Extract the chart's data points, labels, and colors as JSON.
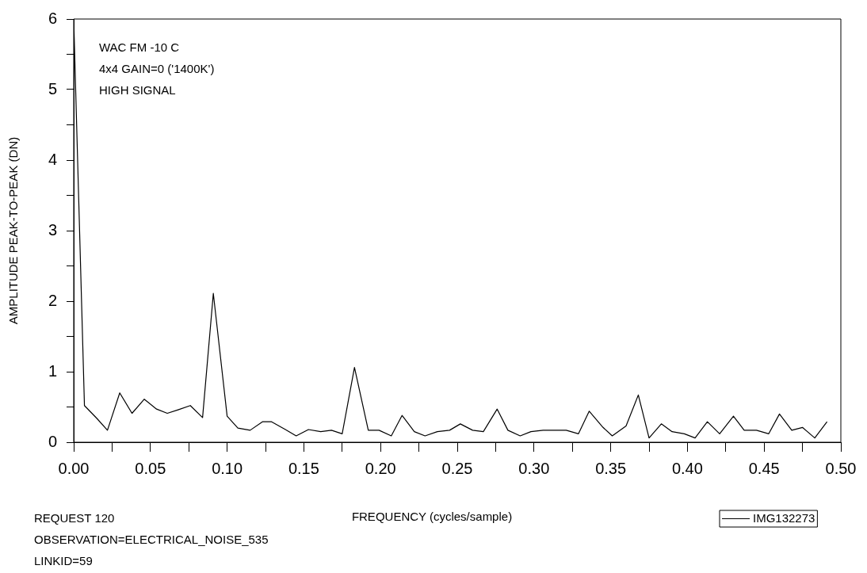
{
  "chart_data": {
    "type": "line",
    "xlabel": "FREQUENCY (cycles/sample)",
    "ylabel": "AMPLITUDE PEAK-TO-PEAK (DN)",
    "annotations": [
      "WAC FM -10 C\n4x4 GAIN=0 ('1400K')\nHIGH SIGNAL",
      "REQUEST 120\nOBSERVATION=ELECTRICAL_NOISE_535\nLINKID=59"
    ],
    "series": [
      {
        "name": "IMG132273",
        "color": "#000000",
        "x": [
          0.0,
          0.007,
          0.015,
          0.022,
          0.03,
          0.038,
          0.046,
          0.054,
          0.061,
          0.068,
          0.076,
          0.084,
          0.091,
          0.1,
          0.107,
          0.115,
          0.123,
          0.129,
          0.138,
          0.145,
          0.153,
          0.161,
          0.168,
          0.175,
          0.183,
          0.192,
          0.199,
          0.207,
          0.214,
          0.222,
          0.229,
          0.237,
          0.245,
          0.252,
          0.26,
          0.267,
          0.276,
          0.283,
          0.291,
          0.298,
          0.306,
          0.314,
          0.321,
          0.329,
          0.336,
          0.345,
          0.351,
          0.36,
          0.368,
          0.375,
          0.383,
          0.39,
          0.398,
          0.405,
          0.413,
          0.421,
          0.43,
          0.437,
          0.445,
          0.453,
          0.46,
          0.468,
          0.475,
          0.483,
          0.491
        ],
        "values": [
          6.0,
          0.52,
          0.34,
          0.17,
          0.7,
          0.41,
          0.61,
          0.47,
          0.41,
          0.46,
          0.52,
          0.35,
          2.11,
          0.37,
          0.2,
          0.17,
          0.29,
          0.29,
          0.18,
          0.09,
          0.18,
          0.15,
          0.17,
          0.12,
          1.06,
          0.17,
          0.17,
          0.09,
          0.38,
          0.15,
          0.09,
          0.15,
          0.17,
          0.26,
          0.17,
          0.15,
          0.47,
          0.17,
          0.09,
          0.15,
          0.17,
          0.17,
          0.17,
          0.12,
          0.44,
          0.21,
          0.09,
          0.23,
          0.67,
          0.06,
          0.26,
          0.15,
          0.12,
          0.06,
          0.29,
          0.12,
          0.37,
          0.17,
          0.17,
          0.12,
          0.4,
          0.17,
          0.21,
          0.06,
          0.29
        ]
      }
    ],
    "xlim": [
      0,
      0.5
    ],
    "xticks": [
      {
        "value": 0,
        "label": "0.00"
      },
      {
        "value": 0.025,
        "label": null
      },
      {
        "value": 0.05,
        "label": "0.05"
      },
      {
        "value": 0.075,
        "label": null
      },
      {
        "value": 0.1,
        "label": "0.10"
      },
      {
        "value": 0.125,
        "label": null
      },
      {
        "value": 0.15,
        "label": "0.15"
      },
      {
        "value": 0.175,
        "label": null
      },
      {
        "value": 0.2,
        "label": "0.20"
      },
      {
        "value": 0.225,
        "label": null
      },
      {
        "value": 0.25,
        "label": "0.25"
      },
      {
        "value": 0.275,
        "label": null
      },
      {
        "value": 0.3,
        "label": "0.30"
      },
      {
        "value": 0.325,
        "label": null
      },
      {
        "value": 0.35,
        "label": "0.35"
      },
      {
        "value": 0.375,
        "label": null
      },
      {
        "value": 0.4,
        "label": "0.40"
      },
      {
        "value": 0.425,
        "label": null
      },
      {
        "value": 0.45,
        "label": "0.45"
      },
      {
        "value": 0.475,
        "label": null
      },
      {
        "value": 0.5,
        "label": "0.50"
      }
    ],
    "ylim": [
      0,
      6
    ],
    "yticks": [
      0,
      {
        "value": 0.5,
        "label": null
      },
      1,
      {
        "value": 1.5,
        "label": null
      },
      2,
      {
        "value": 2.5,
        "label": null
      },
      3,
      {
        "value": 3.5,
        "label": null
      },
      4,
      {
        "value": 4.5,
        "label": null
      },
      5,
      {
        "value": 5.5,
        "label": null
      },
      6
    ],
    "legend": "bottom right",
    "marker": "none",
    "line_style": "solid"
  }
}
